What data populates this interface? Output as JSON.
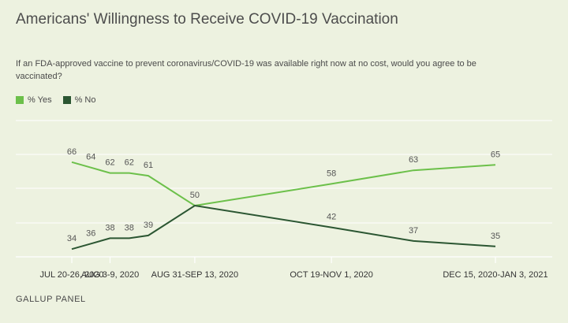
{
  "title": "Americans' Willingness to Receive COVID-19 Vaccination",
  "subtitle": "If an FDA-approved vaccine to prevent coronavirus/COVID-19 was available right now at no cost, would you agree to be vaccinated?",
  "source": "GALLUP PANEL",
  "chart_data": {
    "type": "line",
    "title": "Americans' Willingness to Receive COVID-19 Vaccination",
    "x_ticks": [
      "JUL 20-26, 2020",
      "AUG 3-9, 2020",
      "AUG 31-SEP 13, 2020",
      "OCT 19-NOV 1, 2020",
      "DEC 15, 2020-JAN 3, 2021"
    ],
    "points": [
      {
        "date": "2020-07-23"
      },
      {
        "date": "2020-07-30"
      },
      {
        "date": "2020-08-06"
      },
      {
        "date": "2020-08-13"
      },
      {
        "date": "2020-08-20"
      },
      {
        "date": "2020-09-06"
      },
      {
        "date": "2020-10-26"
      },
      {
        "date": "2020-11-25"
      },
      {
        "date": "2020-12-25"
      }
    ],
    "series": [
      {
        "name": "% Yes",
        "color": "#6cc04a",
        "values": [
          66,
          64,
          62,
          62,
          61,
          50,
          58,
          63,
          65
        ]
      },
      {
        "name": "% No",
        "color": "#2b5632",
        "values": [
          34,
          36,
          38,
          38,
          39,
          50,
          42,
          37,
          35
        ]
      }
    ],
    "legend_position": "top-left",
    "grid": true
  }
}
